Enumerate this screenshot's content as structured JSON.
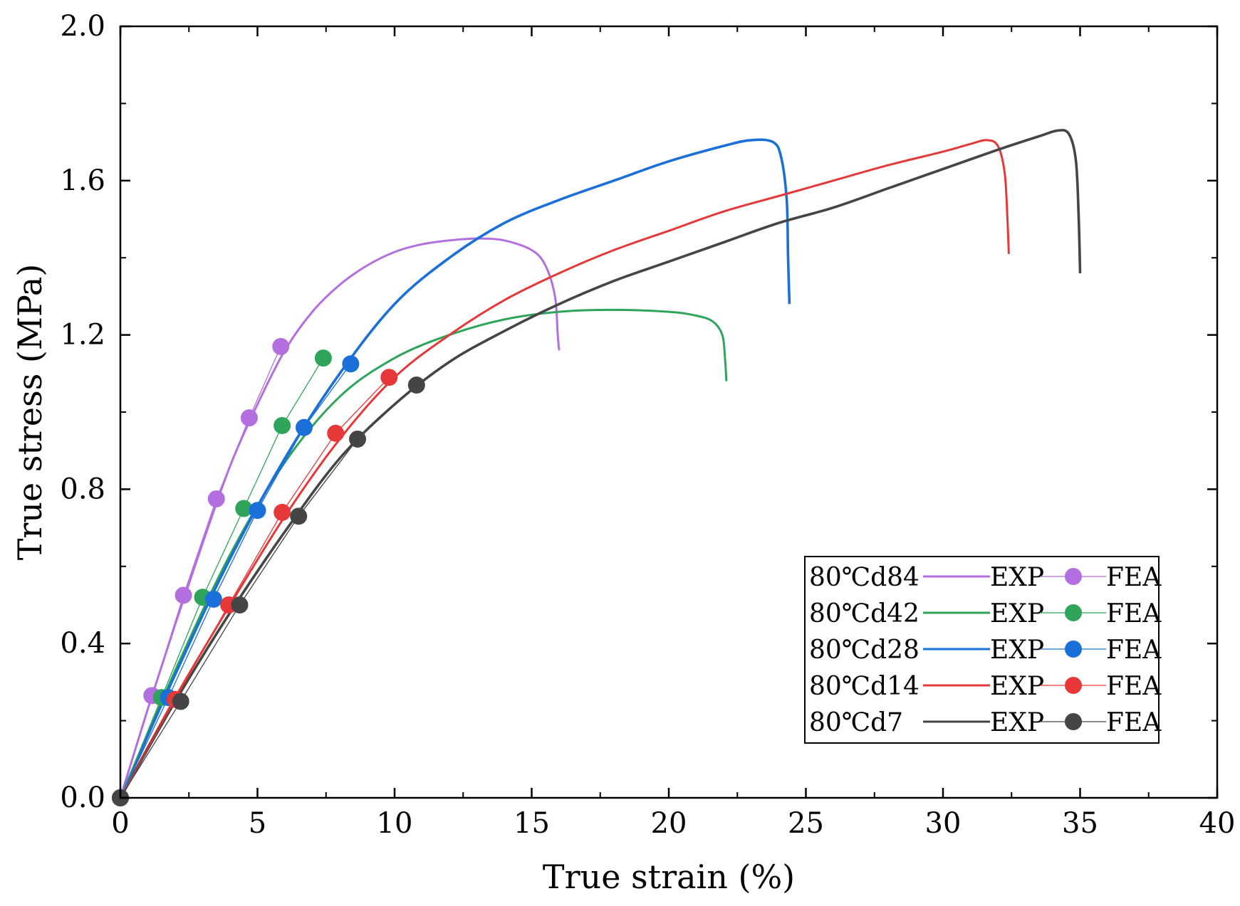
{
  "chart_data": {
    "type": "line",
    "title": "",
    "xlabel": "True strain (%)",
    "ylabel": "True stress (MPa)",
    "xlim": [
      0,
      40
    ],
    "ylim": [
      0.0,
      2.0
    ],
    "x_ticks": [
      0,
      5,
      10,
      15,
      20,
      25,
      30,
      35,
      40
    ],
    "x_tick_labels": [
      "0",
      "5",
      "10",
      "15",
      "20",
      "25",
      "30",
      "35",
      "40"
    ],
    "y_ticks": [
      0.0,
      0.4,
      0.8,
      1.2,
      1.6,
      2.0
    ],
    "y_tick_labels": [
      "0.0",
      "0.4",
      "0.8",
      "1.2",
      "1.6",
      "2.0"
    ],
    "grid": false,
    "legend_position": "bottom-right",
    "exp_label": "EXP",
    "fea_label": "FEA",
    "series": [
      {
        "name": "80℃d84",
        "color": "#b36ee0",
        "exp": [
          [
            0,
            0
          ],
          [
            1,
            0.23
          ],
          [
            2,
            0.45
          ],
          [
            3,
            0.66
          ],
          [
            4,
            0.86
          ],
          [
            5,
            1.02
          ],
          [
            6,
            1.16
          ],
          [
            7,
            1.26
          ],
          [
            8,
            1.33
          ],
          [
            9,
            1.38
          ],
          [
            10,
            1.415
          ],
          [
            11,
            1.435
          ],
          [
            12,
            1.445
          ],
          [
            13,
            1.45
          ],
          [
            14,
            1.445
          ],
          [
            15,
            1.42
          ],
          [
            15.5,
            1.38
          ],
          [
            15.85,
            1.3
          ],
          [
            15.95,
            1.2
          ],
          [
            16.0,
            1.16
          ]
        ],
        "fea": [
          [
            0,
            0
          ],
          [
            1.15,
            0.265
          ],
          [
            2.3,
            0.525
          ],
          [
            3.5,
            0.775
          ],
          [
            4.7,
            0.985
          ],
          [
            5.85,
            1.17
          ]
        ]
      },
      {
        "name": "80℃d42",
        "color": "#2ea55a",
        "exp": [
          [
            0,
            0
          ],
          [
            2,
            0.33
          ],
          [
            4,
            0.63
          ],
          [
            6,
            0.87
          ],
          [
            8,
            1.04
          ],
          [
            10,
            1.14
          ],
          [
            12,
            1.2
          ],
          [
            14,
            1.24
          ],
          [
            16,
            1.26
          ],
          [
            18,
            1.265
          ],
          [
            20,
            1.26
          ],
          [
            21,
            1.25
          ],
          [
            21.6,
            1.235
          ],
          [
            21.95,
            1.2
          ],
          [
            22.05,
            1.14
          ],
          [
            22.1,
            1.08
          ]
        ],
        "fea": [
          [
            0,
            0
          ],
          [
            1.5,
            0.26
          ],
          [
            3.0,
            0.52
          ],
          [
            4.5,
            0.75
          ],
          [
            5.9,
            0.965
          ],
          [
            7.4,
            1.14
          ]
        ]
      },
      {
        "name": "80℃d28",
        "color": "#1a6fd8",
        "exp": [
          [
            0,
            0
          ],
          [
            2,
            0.32
          ],
          [
            4,
            0.62
          ],
          [
            6,
            0.88
          ],
          [
            8,
            1.1
          ],
          [
            10,
            1.28
          ],
          [
            12,
            1.4
          ],
          [
            14,
            1.49
          ],
          [
            16,
            1.55
          ],
          [
            18,
            1.6
          ],
          [
            20,
            1.65
          ],
          [
            22,
            1.69
          ],
          [
            23,
            1.705
          ],
          [
            23.8,
            1.7
          ],
          [
            24.1,
            1.66
          ],
          [
            24.3,
            1.55
          ],
          [
            24.35,
            1.4
          ],
          [
            24.4,
            1.28
          ]
        ],
        "fea": [
          [
            0,
            0
          ],
          [
            1.75,
            0.26
          ],
          [
            3.4,
            0.515
          ],
          [
            5.0,
            0.745
          ],
          [
            6.7,
            0.96
          ],
          [
            8.4,
            1.125
          ]
        ]
      },
      {
        "name": "80℃d14",
        "color": "#e63838",
        "exp": [
          [
            0,
            0
          ],
          [
            2,
            0.26
          ],
          [
            4,
            0.5
          ],
          [
            6,
            0.73
          ],
          [
            8,
            0.93
          ],
          [
            10,
            1.09
          ],
          [
            12,
            1.2
          ],
          [
            14,
            1.29
          ],
          [
            16,
            1.36
          ],
          [
            18,
            1.42
          ],
          [
            20,
            1.47
          ],
          [
            22,
            1.52
          ],
          [
            24,
            1.56
          ],
          [
            26,
            1.6
          ],
          [
            28,
            1.64
          ],
          [
            30,
            1.675
          ],
          [
            31,
            1.695
          ],
          [
            31.6,
            1.705
          ],
          [
            32.0,
            1.69
          ],
          [
            32.25,
            1.62
          ],
          [
            32.35,
            1.5
          ],
          [
            32.4,
            1.41
          ]
        ],
        "fea": [
          [
            0,
            0
          ],
          [
            2.0,
            0.255
          ],
          [
            3.95,
            0.5
          ],
          [
            5.9,
            0.74
          ],
          [
            7.85,
            0.945
          ],
          [
            9.8,
            1.09
          ]
        ]
      },
      {
        "name": "80℃d7",
        "color": "#454545",
        "exp": [
          [
            0,
            0
          ],
          [
            2,
            0.25
          ],
          [
            4,
            0.48
          ],
          [
            6,
            0.69
          ],
          [
            8,
            0.88
          ],
          [
            10,
            1.02
          ],
          [
            12,
            1.13
          ],
          [
            14,
            1.21
          ],
          [
            16,
            1.28
          ],
          [
            18,
            1.34
          ],
          [
            20,
            1.39
          ],
          [
            22,
            1.44
          ],
          [
            24,
            1.49
          ],
          [
            26,
            1.53
          ],
          [
            28,
            1.58
          ],
          [
            30,
            1.63
          ],
          [
            32,
            1.68
          ],
          [
            33.5,
            1.715
          ],
          [
            34.2,
            1.73
          ],
          [
            34.6,
            1.72
          ],
          [
            34.85,
            1.65
          ],
          [
            34.95,
            1.5
          ],
          [
            35.0,
            1.36
          ]
        ],
        "fea": [
          [
            0,
            0
          ],
          [
            2.2,
            0.25
          ],
          [
            4.35,
            0.5
          ],
          [
            6.5,
            0.73
          ],
          [
            8.65,
            0.93
          ],
          [
            10.8,
            1.07
          ]
        ]
      }
    ]
  }
}
